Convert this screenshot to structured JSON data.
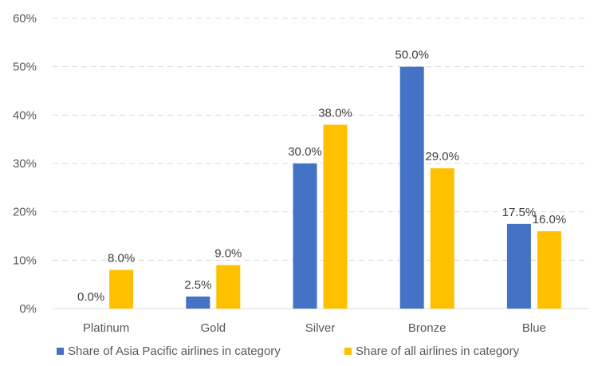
{
  "chart_data": {
    "type": "bar",
    "title": "",
    "xlabel": "",
    "ylabel": "",
    "categories": [
      "Platinum",
      "Gold",
      "Silver",
      "Bronze",
      "Blue"
    ],
    "series": [
      {
        "name": "Share of Asia Pacific airlines in category",
        "color": "#4472c4",
        "values": [
          0.0,
          2.5,
          30.0,
          50.0,
          17.5
        ]
      },
      {
        "name": "Share of all airlines in category",
        "color": "#ffc000",
        "values": [
          8.0,
          9.0,
          38.0,
          29.0,
          16.0
        ]
      }
    ],
    "ylim": [
      0,
      60
    ],
    "yticks": [
      0,
      10,
      20,
      30,
      40,
      50,
      60
    ],
    "ytick_labels": [
      "0%",
      "10%",
      "20%",
      "30%",
      "40%",
      "50%",
      "60%"
    ],
    "data_labels": [
      [
        "0.0%",
        "2.5%",
        "30.0%",
        "50.0%",
        "17.5%"
      ],
      [
        "8.0%",
        "9.0%",
        "38.0%",
        "29.0%",
        "16.0%"
      ]
    ],
    "grid": true,
    "legend_position": "bottom"
  }
}
